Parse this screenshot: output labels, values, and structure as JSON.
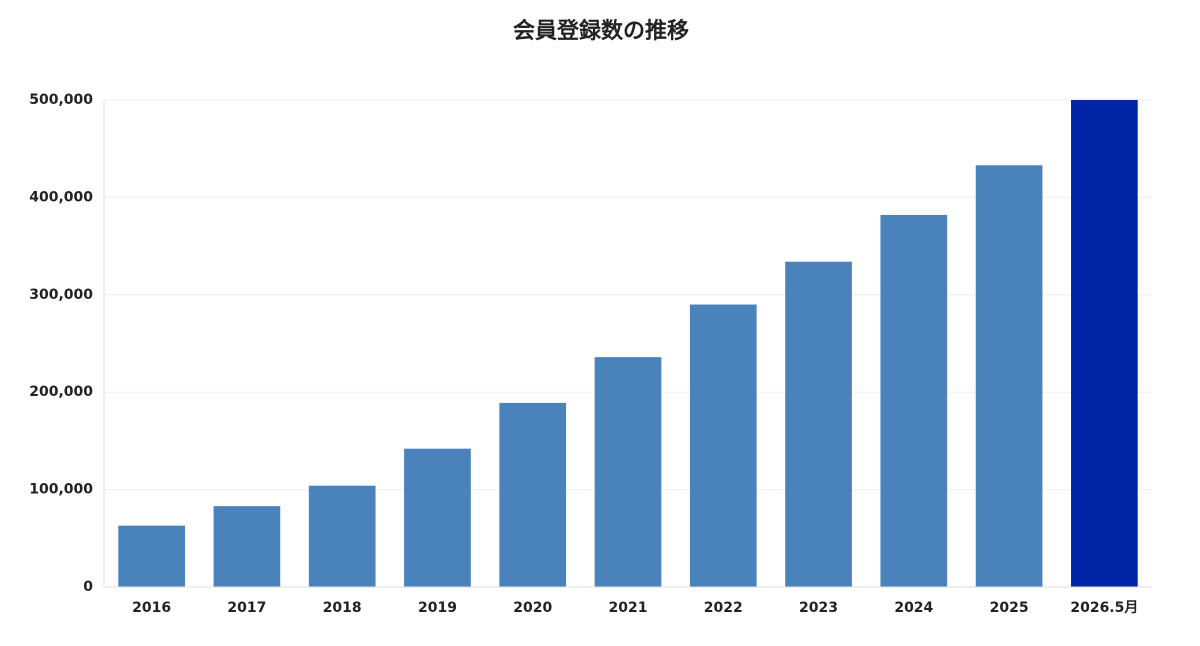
{
  "chart_data": {
    "type": "bar",
    "title": "会員登録数の推移",
    "categories": [
      "2016",
      "2017",
      "2018",
      "2019",
      "2020",
      "2021",
      "2022",
      "2023",
      "2024",
      "2025",
      "2026.5月"
    ],
    "values": [
      63000,
      83000,
      104000,
      142000,
      189000,
      236000,
      290000,
      334000,
      382000,
      433000,
      500000
    ],
    "colors": [
      "#4a83bb",
      "#4a83bb",
      "#4a83bb",
      "#4a83bb",
      "#4a83bb",
      "#4a83bb",
      "#4a83bb",
      "#4a83bb",
      "#4a83bb",
      "#4a83bb",
      "#0026a8"
    ],
    "ylim": [
      0,
      500000
    ],
    "yticks": [
      0,
      {
        "value": 100000,
        "label": "100,000"
      },
      {
        "value": 200000,
        "label": "200,000"
      },
      {
        "value": 300000,
        "label": "300,000"
      },
      {
        "value": 400000,
        "label": "400,000"
      },
      {
        "value": 500000,
        "label": "500,000"
      }
    ],
    "grid": true
  }
}
